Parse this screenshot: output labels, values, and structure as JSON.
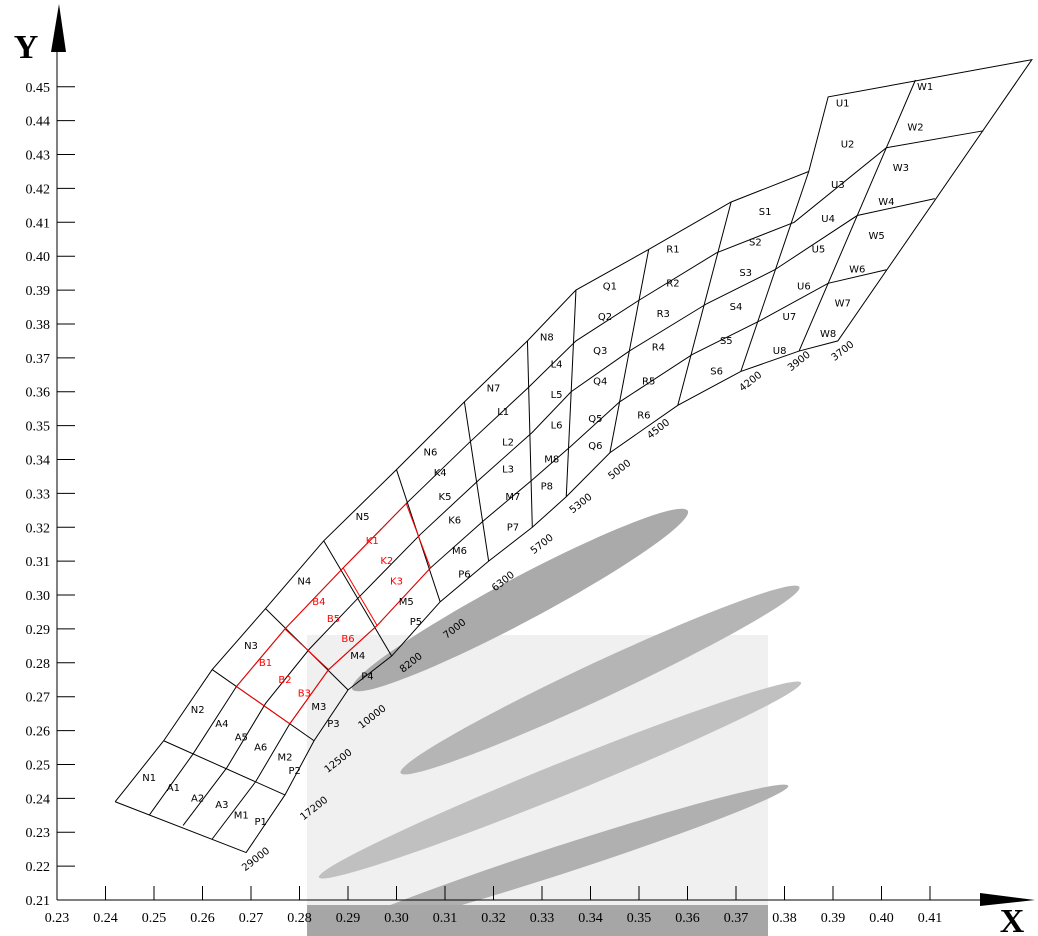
{
  "chart_data": {
    "type": "grid",
    "xlabel": "X",
    "ylabel": "Y",
    "xlim": [
      0.23,
      0.43
    ],
    "ylim": [
      0.21,
      0.47
    ],
    "xticks": [
      0.23,
      0.24,
      0.25,
      0.26,
      0.27,
      0.28,
      0.29,
      {
        "value": 0.3,
        "label": "0.30"
      },
      0.31,
      0.32,
      0.33,
      0.34,
      0.35,
      0.36,
      0.37,
      0.38,
      0.39,
      {
        "value": 0.4,
        "label": "0.40"
      },
      0.41
    ],
    "yticks": [
      0.21,
      0.22,
      0.23,
      0.24,
      0.25,
      0.26,
      0.27,
      0.28,
      0.29,
      {
        "value": 0.3,
        "label": "0.30"
      },
      0.31,
      0.32,
      0.33,
      0.34,
      0.35,
      0.36,
      0.37,
      0.38,
      0.39,
      {
        "value": 0.4,
        "label": "0.40"
      },
      0.41,
      0.42,
      0.43,
      0.44,
      0.45
    ],
    "lines": [
      {
        "color": "#000000",
        "x": [
          0.242,
          0.252,
          0.262,
          0.273,
          0.285,
          0.3,
          0.314,
          0.327,
          0.337,
          0.352,
          0.369,
          0.385,
          0.389,
          0.431,
          0.391,
          0.383,
          0.371,
          0.358,
          0.344,
          0.335,
          0.328,
          0.319,
          0.309,
          0.299,
          0.29,
          0.283,
          0.277,
          0.269,
          0.242
        ],
        "y": [
          0.239,
          0.257,
          0.278,
          0.296,
          0.316,
          0.337,
          0.357,
          0.375,
          0.39,
          0.402,
          0.416,
          0.425,
          0.447,
          0.458,
          0.375,
          0.372,
          0.366,
          0.356,
          0.342,
          0.329,
          0.32,
          0.31,
          0.298,
          0.282,
          0.272,
          0.257,
          0.241,
          0.224,
          0.239
        ]
      },
      {
        "color": "#000000",
        "x": [
          0.252,
          0.277
        ],
        "y": [
          0.257,
          0.241
        ]
      },
      {
        "color": "#000000",
        "x": [
          0.262,
          0.283
        ],
        "y": [
          0.278,
          0.257
        ]
      },
      {
        "color": "#000000",
        "x": [
          0.273,
          0.29
        ],
        "y": [
          0.296,
          0.272
        ]
      },
      {
        "color": "#000000",
        "x": [
          0.285,
          0.299
        ],
        "y": [
          0.316,
          0.282
        ]
      },
      {
        "color": "#000000",
        "x": [
          0.3,
          0.309
        ],
        "y": [
          0.337,
          0.298
        ]
      },
      {
        "color": "#000000",
        "x": [
          0.314,
          0.319
        ],
        "y": [
          0.357,
          0.31
        ]
      },
      {
        "color": "#000000",
        "x": [
          0.327,
          0.328
        ],
        "y": [
          0.375,
          0.32
        ]
      },
      {
        "color": "#000000",
        "x": [
          0.337,
          0.335
        ],
        "y": [
          0.39,
          0.329
        ]
      },
      {
        "color": "#000000",
        "x": [
          0.352,
          0.344
        ],
        "y": [
          0.402,
          0.342
        ]
      },
      {
        "color": "#000000",
        "x": [
          0.369,
          0.358
        ],
        "y": [
          0.416,
          0.356
        ]
      },
      {
        "color": "#000000",
        "x": [
          0.385,
          0.371
        ],
        "y": [
          0.425,
          0.366
        ]
      },
      {
        "color": "#000000",
        "x": [
          0.407,
          0.383
        ],
        "y": [
          0.452,
          0.372
        ]
      },
      {
        "color": "#000000",
        "x": [
          0.249,
          0.258,
          0.267,
          0.277,
          0.289,
          0.302,
          0.315,
          0.327,
          0.337,
          0.35,
          0.366,
          0.382,
          0.401,
          0.421
        ],
        "y": [
          0.235,
          0.253,
          0.273,
          0.29,
          0.308,
          0.327,
          0.345,
          0.361,
          0.375,
          0.387,
          0.401,
          0.41,
          0.432,
          0.437
        ]
      },
      {
        "color": "#000000",
        "x": [
          0.256,
          0.265,
          0.273,
          0.282,
          0.292,
          0.305,
          0.317,
          0.328,
          0.336,
          0.348,
          0.364,
          0.378,
          0.395,
          0.411
        ],
        "y": [
          0.232,
          0.249,
          0.268,
          0.284,
          0.299,
          0.318,
          0.334,
          0.348,
          0.36,
          0.372,
          0.386,
          0.396,
          0.412,
          0.417
        ]
      },
      {
        "color": "#000000",
        "x": [
          0.262,
          0.271,
          0.278,
          0.286,
          0.296,
          0.307,
          0.318,
          0.328,
          0.336,
          0.346,
          0.361,
          0.375,
          0.389,
          0.401
        ],
        "y": [
          0.228,
          0.245,
          0.262,
          0.278,
          0.291,
          0.308,
          0.322,
          0.334,
          0.344,
          0.357,
          0.371,
          0.381,
          0.392,
          0.396
        ]
      },
      {
        "color": "#ff0000",
        "x": [
          0.267,
          0.277,
          0.289,
          0.302
        ],
        "y": [
          0.273,
          0.29,
          0.308,
          0.327
        ]
      },
      {
        "color": "#ff0000",
        "x": [
          0.278,
          0.286,
          0.296,
          0.307
        ],
        "y": [
          0.262,
          0.278,
          0.291,
          0.308
        ]
      },
      {
        "color": "#ff0000",
        "x": [
          0.267,
          0.278
        ],
        "y": [
          0.273,
          0.262
        ]
      },
      {
        "color": "#ff0000",
        "x": [
          0.277,
          0.286
        ],
        "y": [
          0.29,
          0.278
        ]
      },
      {
        "color": "#ff0000",
        "x": [
          0.289,
          0.296
        ],
        "y": [
          0.308,
          0.291
        ]
      },
      {
        "color": "#ff0000",
        "x": [
          0.302,
          0.307
        ],
        "y": [
          0.327,
          0.308
        ]
      }
    ],
    "annotations": [
      {
        "text": "N1",
        "x": 0.249,
        "y": 0.246
      },
      {
        "text": "A1",
        "x": 0.254,
        "y": 0.243
      },
      {
        "text": "A2",
        "x": 0.259,
        "y": 0.24
      },
      {
        "text": "A3",
        "x": 0.264,
        "y": 0.238
      },
      {
        "text": "M1",
        "x": 0.268,
        "y": 0.235
      },
      {
        "text": "P1",
        "x": 0.272,
        "y": 0.233
      },
      {
        "text": "N2",
        "x": 0.259,
        "y": 0.266
      },
      {
        "text": "A4",
        "x": 0.264,
        "y": 0.262
      },
      {
        "text": "A5",
        "x": 0.268,
        "y": 0.258
      },
      {
        "text": "A6",
        "x": 0.272,
        "y": 0.255
      },
      {
        "text": "M2",
        "x": 0.277,
        "y": 0.252
      },
      {
        "text": "P2",
        "x": 0.279,
        "y": 0.248
      },
      {
        "text": "N3",
        "x": 0.27,
        "y": 0.285
      },
      {
        "text": "B1",
        "x": 0.273,
        "y": 0.28,
        "color": "#ff0000"
      },
      {
        "text": "B2",
        "x": 0.277,
        "y": 0.275,
        "color": "#ff0000"
      },
      {
        "text": "B3",
        "x": 0.281,
        "y": 0.271,
        "color": "#ff0000"
      },
      {
        "text": "M3",
        "x": 0.284,
        "y": 0.267
      },
      {
        "text": "P3",
        "x": 0.287,
        "y": 0.262
      },
      {
        "text": "N4",
        "x": 0.281,
        "y": 0.304
      },
      {
        "text": "B4",
        "x": 0.284,
        "y": 0.298,
        "color": "#ff0000"
      },
      {
        "text": "B5",
        "x": 0.287,
        "y": 0.293,
        "color": "#ff0000"
      },
      {
        "text": "B6",
        "x": 0.29,
        "y": 0.287,
        "color": "#ff0000"
      },
      {
        "text": "M4",
        "x": 0.292,
        "y": 0.282
      },
      {
        "text": "P4",
        "x": 0.294,
        "y": 0.276
      },
      {
        "text": "N5",
        "x": 0.293,
        "y": 0.323
      },
      {
        "text": "K1",
        "x": 0.295,
        "y": 0.316,
        "color": "#ff0000"
      },
      {
        "text": "K2",
        "x": 0.298,
        "y": 0.31,
        "color": "#ff0000"
      },
      {
        "text": "K3",
        "x": 0.3,
        "y": 0.304,
        "color": "#ff0000"
      },
      {
        "text": "M5",
        "x": 0.302,
        "y": 0.298
      },
      {
        "text": "P5",
        "x": 0.304,
        "y": 0.292
      },
      {
        "text": "N6",
        "x": 0.307,
        "y": 0.342
      },
      {
        "text": "K4",
        "x": 0.309,
        "y": 0.336
      },
      {
        "text": "K5",
        "x": 0.31,
        "y": 0.329
      },
      {
        "text": "K6",
        "x": 0.312,
        "y": 0.322
      },
      {
        "text": "M6",
        "x": 0.313,
        "y": 0.313
      },
      {
        "text": "P6",
        "x": 0.314,
        "y": 0.306
      },
      {
        "text": "N7",
        "x": 0.32,
        "y": 0.361
      },
      {
        "text": "L1",
        "x": 0.322,
        "y": 0.354
      },
      {
        "text": "L2",
        "x": 0.323,
        "y": 0.345
      },
      {
        "text": "L3",
        "x": 0.323,
        "y": 0.337
      },
      {
        "text": "M7",
        "x": 0.324,
        "y": 0.329
      },
      {
        "text": "P7",
        "x": 0.324,
        "y": 0.32
      },
      {
        "text": "N8",
        "x": 0.331,
        "y": 0.376
      },
      {
        "text": "L4",
        "x": 0.333,
        "y": 0.368
      },
      {
        "text": "L5",
        "x": 0.333,
        "y": 0.359
      },
      {
        "text": "L6",
        "x": 0.333,
        "y": 0.35
      },
      {
        "text": "M8",
        "x": 0.332,
        "y": 0.34
      },
      {
        "text": "P8",
        "x": 0.331,
        "y": 0.332
      },
      {
        "text": "Q1",
        "x": 0.344,
        "y": 0.391
      },
      {
        "text": "Q2",
        "x": 0.343,
        "y": 0.382
      },
      {
        "text": "Q3",
        "x": 0.342,
        "y": 0.372
      },
      {
        "text": "Q4",
        "x": 0.342,
        "y": 0.363
      },
      {
        "text": "Q5",
        "x": 0.341,
        "y": 0.352
      },
      {
        "text": "Q6",
        "x": 0.341,
        "y": 0.344
      },
      {
        "text": "R1",
        "x": 0.357,
        "y": 0.402
      },
      {
        "text": "R2",
        "x": 0.357,
        "y": 0.392
      },
      {
        "text": "R3",
        "x": 0.355,
        "y": 0.383
      },
      {
        "text": "R4",
        "x": 0.354,
        "y": 0.373
      },
      {
        "text": "R5",
        "x": 0.352,
        "y": 0.363
      },
      {
        "text": "R6",
        "x": 0.351,
        "y": 0.353
      },
      {
        "text": "S1",
        "x": 0.376,
        "y": 0.413
      },
      {
        "text": "S2",
        "x": 0.374,
        "y": 0.404
      },
      {
        "text": "S3",
        "x": 0.372,
        "y": 0.395
      },
      {
        "text": "S4",
        "x": 0.37,
        "y": 0.385
      },
      {
        "text": "S5",
        "x": 0.368,
        "y": 0.375
      },
      {
        "text": "S6",
        "x": 0.366,
        "y": 0.366
      },
      {
        "text": "U1",
        "x": 0.392,
        "y": 0.445
      },
      {
        "text": "U2",
        "x": 0.393,
        "y": 0.433
      },
      {
        "text": "U3",
        "x": 0.391,
        "y": 0.421
      },
      {
        "text": "U4",
        "x": 0.389,
        "y": 0.411
      },
      {
        "text": "U5",
        "x": 0.387,
        "y": 0.402
      },
      {
        "text": "U6",
        "x": 0.384,
        "y": 0.391
      },
      {
        "text": "U7",
        "x": 0.381,
        "y": 0.382
      },
      {
        "text": "U8",
        "x": 0.379,
        "y": 0.372
      },
      {
        "text": "W1",
        "x": 0.409,
        "y": 0.45
      },
      {
        "text": "W2",
        "x": 0.407,
        "y": 0.438
      },
      {
        "text": "W3",
        "x": 0.404,
        "y": 0.426
      },
      {
        "text": "W4",
        "x": 0.401,
        "y": 0.416
      },
      {
        "text": "W5",
        "x": 0.399,
        "y": 0.406
      },
      {
        "text": "W6",
        "x": 0.395,
        "y": 0.396
      },
      {
        "text": "W7",
        "x": 0.392,
        "y": 0.386
      },
      {
        "text": "W8",
        "x": 0.389,
        "y": 0.377
      }
    ],
    "line_labels": [
      {
        "text": "29000",
        "x": 0.271,
        "y": 0.222
      },
      {
        "text": "17200",
        "x": 0.283,
        "y": 0.237
      },
      {
        "text": "12500",
        "x": 0.288,
        "y": 0.251
      },
      {
        "text": "10000",
        "x": 0.295,
        "y": 0.264
      },
      {
        "text": "8200",
        "x": 0.303,
        "y": 0.28
      },
      {
        "text": "7000",
        "x": 0.312,
        "y": 0.29
      },
      {
        "text": "6300",
        "x": 0.322,
        "y": 0.304
      },
      {
        "text": "5700",
        "x": 0.33,
        "y": 0.315
      },
      {
        "text": "5300",
        "x": 0.338,
        "y": 0.327
      },
      {
        "text": "5000",
        "x": 0.346,
        "y": 0.337
      },
      {
        "text": "4500",
        "x": 0.354,
        "y": 0.349
      },
      {
        "text": "4200",
        "x": 0.373,
        "y": 0.363
      },
      {
        "text": "3900",
        "x": 0.383,
        "y": 0.369
      },
      {
        "text": "3700",
        "x": 0.392,
        "y": 0.372
      }
    ]
  }
}
